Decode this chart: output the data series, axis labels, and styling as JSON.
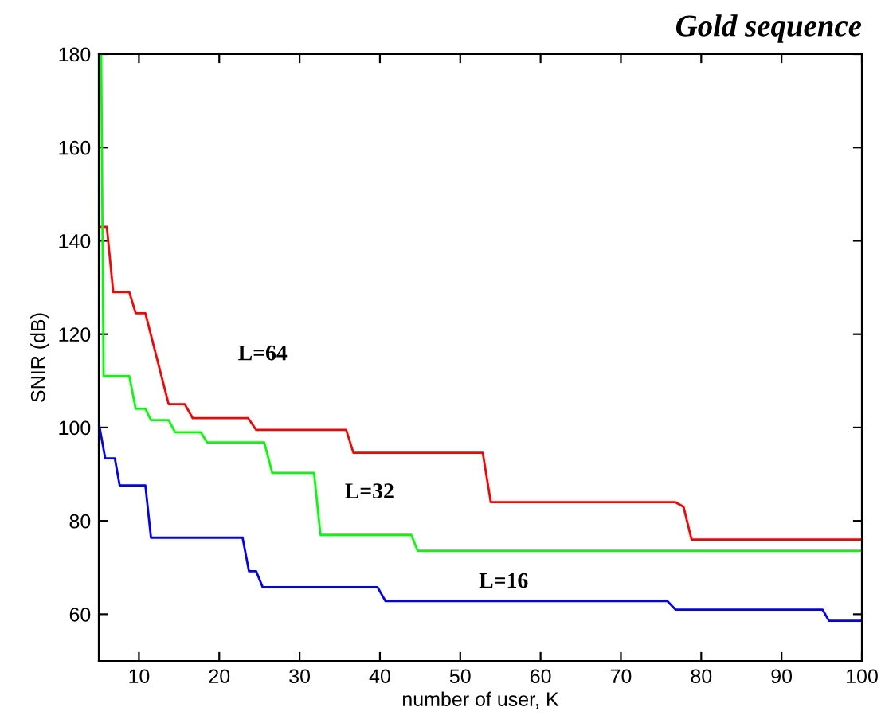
{
  "chart_data": {
    "type": "line",
    "title": "Gold sequence",
    "xlabel": "number of user, K",
    "ylabel": "SNIR (dB)",
    "xlim": [
      5,
      100
    ],
    "ylim": [
      50,
      180
    ],
    "xticks": [
      10,
      20,
      30,
      40,
      50,
      60,
      70,
      80,
      90,
      100
    ],
    "yticks": [
      60,
      80,
      100,
      120,
      140,
      160,
      180
    ],
    "grid": false,
    "legend": false,
    "marker": "none",
    "line_style": "solid",
    "series": [
      {
        "name": "L=64",
        "color": "#ff0000",
        "x": [
          5,
          6,
          6.8,
          8.8,
          9.6,
          10.8,
          13.7,
          15.7,
          16.7,
          23.6,
          24.6,
          35.8,
          36.7,
          52.8,
          53.8,
          76.8,
          77.8,
          78.8,
          100
        ],
        "values": [
          143,
          143,
          129,
          129,
          124.5,
          124.5,
          105,
          105,
          102,
          102,
          99.5,
          99.5,
          94.6,
          94.6,
          84,
          84,
          83,
          76,
          76
        ]
      },
      {
        "name": "L=32",
        "color": "#00ff00",
        "x": [
          5.3,
          5.6,
          8.8,
          9.6,
          10.8,
          11.5,
          13.7,
          14.5,
          17.7,
          18.5,
          25.6,
          26.6,
          31.8,
          32.6,
          43.9,
          44.7,
          100
        ],
        "values": [
          180,
          111,
          111,
          104,
          104,
          101.6,
          101.6,
          99,
          99,
          96.8,
          96.8,
          90.3,
          90.3,
          77,
          77,
          73.6,
          73.6
        ]
      },
      {
        "name": "L=16",
        "color": "#0000ff",
        "x": [
          5,
          5.8,
          7,
          7.6,
          10.8,
          11.5,
          22.9,
          23.7,
          24.6,
          25.4,
          39.7,
          40.7,
          75.8,
          76.8,
          95.1,
          95.9,
          100
        ],
        "values": [
          101,
          93.4,
          93.4,
          87.6,
          87.6,
          76.4,
          76.4,
          69.2,
          69.2,
          65.8,
          65.8,
          62.8,
          62.8,
          61,
          61,
          58.6,
          58.6
        ]
      }
    ]
  }
}
